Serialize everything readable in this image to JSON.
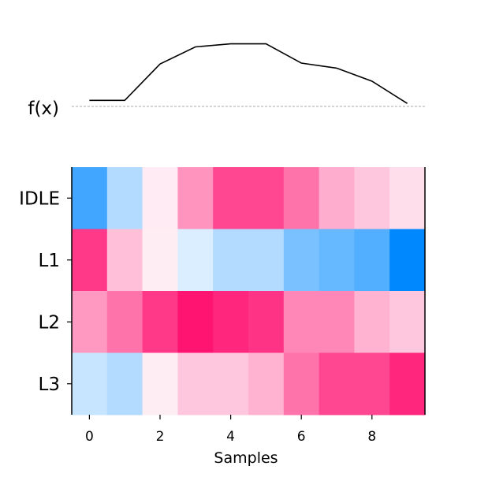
{
  "chart_data": {
    "type": "heatmap",
    "title": "",
    "xlabel": "Samples",
    "ylabel": "",
    "x_ticks": [
      0,
      2,
      4,
      6,
      8
    ],
    "x": [
      0,
      1,
      2,
      3,
      4,
      5,
      6,
      7,
      8,
      9
    ],
    "rows": [
      "IDLE",
      "L1",
      "L2",
      "L3"
    ],
    "colormap": {
      "negative": "#0088FF",
      "zero": "#FFFFFF",
      "positive": "#FF0066"
    },
    "clim": [
      -1,
      1
    ],
    "matrix": [
      [
        -0.75,
        -0.3,
        0.08,
        0.42,
        0.72,
        0.72,
        0.55,
        0.32,
        0.22,
        0.13
      ],
      [
        0.78,
        0.25,
        0.07,
        -0.14,
        -0.3,
        -0.3,
        -0.52,
        -0.6,
        -0.68,
        -1.0
      ],
      [
        0.4,
        0.55,
        0.78,
        0.92,
        0.85,
        0.8,
        0.47,
        0.47,
        0.3,
        0.22
      ],
      [
        -0.22,
        -0.3,
        0.07,
        0.22,
        0.22,
        0.3,
        0.55,
        0.72,
        0.72,
        0.85
      ]
    ],
    "profile": {
      "label": "f(x)",
      "x": [
        0,
        1,
        2,
        3,
        4,
        5,
        6,
        7,
        8,
        9
      ],
      "y": [
        0.06,
        0.06,
        0.42,
        0.59,
        0.62,
        0.62,
        0.43,
        0.38,
        0.25,
        0.03
      ],
      "baseline": 0,
      "ylim": [
        0,
        0.7
      ]
    }
  }
}
